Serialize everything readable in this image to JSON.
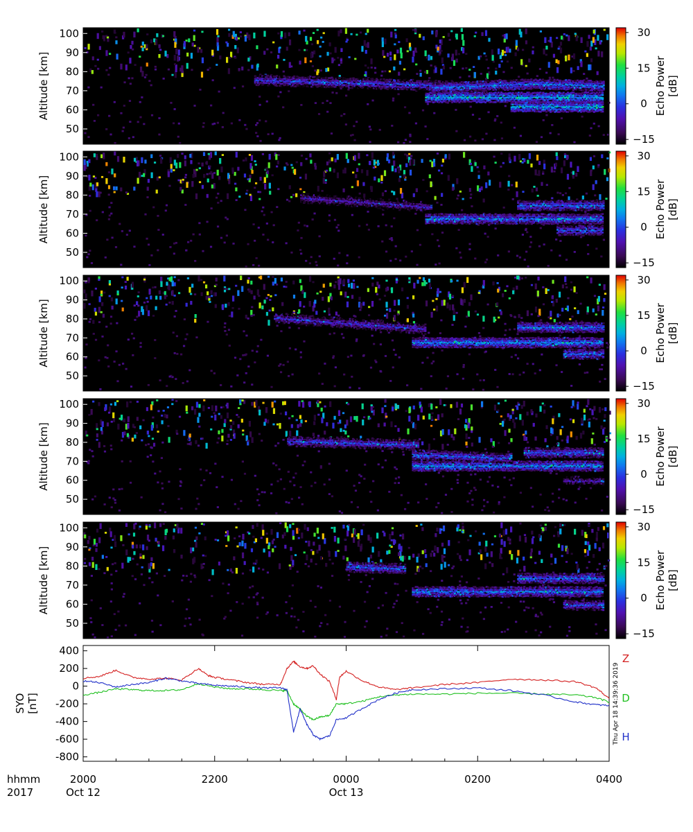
{
  "chart_data": [
    {
      "type": "heatmap",
      "panel": 1,
      "ylabel": "Altitude [km]",
      "yticks": [
        50,
        60,
        70,
        80,
        90,
        100
      ],
      "ylim": [
        42,
        103
      ],
      "colorbar_label": "Echo Power [dB]",
      "colorbar_ticks": [
        -15,
        0,
        15,
        30
      ],
      "clim": [
        -17,
        32
      ],
      "layers": [
        {
          "start": 22.6,
          "end": 25.6,
          "alt_start": 76,
          "alt_end": 73,
          "power": 2
        },
        {
          "start": 25.2,
          "end": 27.9,
          "alt_start": 67,
          "alt_end": 67,
          "power": 8
        },
        {
          "start": 25.3,
          "end": 26.8,
          "alt_start": 72,
          "alt_end": 74,
          "power": 4
        },
        {
          "start": 26.5,
          "end": 27.9,
          "alt_start": 62,
          "alt_end": 62,
          "power": 8
        },
        {
          "start": 26.8,
          "end": 27.9,
          "alt_start": 74,
          "alt_end": 73,
          "power": 5
        }
      ]
    },
    {
      "type": "heatmap",
      "panel": 2,
      "ylabel": "Altitude [km]",
      "yticks": [
        50,
        60,
        70,
        80,
        90,
        100
      ],
      "ylim": [
        42,
        103
      ],
      "colorbar_label": "Echo Power [dB]",
      "colorbar_ticks": [
        -15,
        0,
        15,
        30
      ],
      "clim": [
        -17,
        32
      ],
      "layers": [
        {
          "start": 23.3,
          "end": 25.3,
          "alt_start": 79,
          "alt_end": 74,
          "power": -2
        },
        {
          "start": 25.2,
          "end": 27.9,
          "alt_start": 68,
          "alt_end": 68,
          "power": 5
        },
        {
          "start": 26.6,
          "end": 27.9,
          "alt_start": 75,
          "alt_end": 75,
          "power": 4
        },
        {
          "start": 27.2,
          "end": 27.9,
          "alt_start": 62,
          "alt_end": 62,
          "power": 3
        }
      ]
    },
    {
      "type": "heatmap",
      "panel": 3,
      "ylabel": "Altitude [km]",
      "yticks": [
        50,
        60,
        70,
        80,
        90,
        100
      ],
      "ylim": [
        42,
        103
      ],
      "colorbar_label": "Echo Power [dB]",
      "colorbar_ticks": [
        -15,
        0,
        15,
        30
      ],
      "clim": [
        -17,
        32
      ],
      "layers": [
        {
          "start": 22.9,
          "end": 25.2,
          "alt_start": 81,
          "alt_end": 75,
          "power": 0
        },
        {
          "start": 25.0,
          "end": 27.9,
          "alt_start": 68,
          "alt_end": 68,
          "power": 6
        },
        {
          "start": 26.6,
          "end": 27.9,
          "alt_start": 76,
          "alt_end": 76,
          "power": 5
        },
        {
          "start": 27.3,
          "end": 27.9,
          "alt_start": 62,
          "alt_end": 62,
          "power": 4
        }
      ]
    },
    {
      "type": "heatmap",
      "panel": 4,
      "ylabel": "Altitude [km]",
      "yticks": [
        50,
        60,
        70,
        80,
        90,
        100
      ],
      "ylim": [
        42,
        103
      ],
      "colorbar_label": "Echo Power [dB]",
      "colorbar_ticks": [
        -15,
        0,
        15,
        30
      ],
      "clim": [
        -17,
        32
      ],
      "layers": [
        {
          "start": 23.1,
          "end": 25.1,
          "alt_start": 81,
          "alt_end": 79,
          "power": 2
        },
        {
          "start": 25.0,
          "end": 27.9,
          "alt_start": 68,
          "alt_end": 68,
          "power": 6
        },
        {
          "start": 25.0,
          "end": 26.5,
          "alt_start": 74,
          "alt_end": 72,
          "power": 3
        },
        {
          "start": 26.7,
          "end": 27.9,
          "alt_start": 75,
          "alt_end": 75,
          "power": 3
        },
        {
          "start": 27.3,
          "end": 27.9,
          "alt_start": 60,
          "alt_end": 60,
          "power": -3
        }
      ]
    },
    {
      "type": "heatmap",
      "panel": 5,
      "ylabel": "Altitude [km]",
      "yticks": [
        50,
        60,
        70,
        80,
        90,
        100
      ],
      "ylim": [
        42,
        103
      ],
      "colorbar_label": "Echo Power [dB]",
      "colorbar_ticks": [
        -15,
        0,
        15,
        30
      ],
      "clim": [
        -17,
        32
      ],
      "layers": [
        {
          "start": 24.0,
          "end": 24.9,
          "alt_start": 80,
          "alt_end": 79,
          "power": 3
        },
        {
          "start": 25.0,
          "end": 27.9,
          "alt_start": 67,
          "alt_end": 67,
          "power": 5
        },
        {
          "start": 26.6,
          "end": 27.9,
          "alt_start": 74,
          "alt_end": 74,
          "power": 4
        },
        {
          "start": 27.3,
          "end": 27.9,
          "alt_start": 60,
          "alt_end": 60,
          "power": 2
        }
      ]
    },
    {
      "type": "line",
      "panel": 6,
      "ylabel": "SYO [nT]",
      "yticks": [
        400,
        200,
        0,
        -200,
        -400,
        -600,
        -800
      ],
      "ylim": [
        -850,
        460
      ],
      "series": [
        {
          "name": "Z",
          "color": "#d42020",
          "x": [
            20.0,
            20.25,
            20.5,
            20.75,
            21.0,
            21.25,
            21.5,
            21.75,
            21.9,
            22.0,
            22.25,
            22.5,
            22.75,
            23.0,
            23.1,
            23.2,
            23.3,
            23.4,
            23.5,
            23.6,
            23.75,
            23.85,
            23.9,
            24.0,
            24.25,
            24.5,
            24.75,
            25.0,
            25.5,
            26.0,
            26.5,
            27.0,
            27.5,
            27.8,
            28.0
          ],
          "y": [
            90,
            110,
            180,
            100,
            80,
            90,
            70,
            200,
            120,
            100,
            70,
            40,
            20,
            20,
            200,
            280,
            220,
            200,
            230,
            140,
            50,
            -150,
            100,
            170,
            60,
            -10,
            -40,
            -20,
            20,
            40,
            80,
            70,
            50,
            -20,
            -140
          ]
        },
        {
          "name": "D",
          "color": "#20c020",
          "x": [
            20.0,
            20.25,
            20.5,
            20.75,
            21.0,
            21.25,
            21.5,
            21.75,
            22.0,
            22.25,
            22.5,
            22.75,
            23.0,
            23.1,
            23.2,
            23.3,
            23.4,
            23.5,
            23.6,
            23.75,
            23.85,
            24.0,
            24.25,
            24.5,
            24.75,
            25.0,
            25.5,
            26.0,
            26.5,
            27.0,
            27.5,
            27.8,
            28.0
          ],
          "y": [
            -100,
            -70,
            -30,
            -40,
            -50,
            -50,
            -40,
            30,
            -10,
            -30,
            -30,
            -40,
            -50,
            -50,
            -200,
            -260,
            -340,
            -380,
            -350,
            -330,
            -200,
            -200,
            -170,
            -120,
            -100,
            -90,
            -90,
            -80,
            -80,
            -90,
            -100,
            -130,
            -180
          ]
        },
        {
          "name": "H",
          "color": "#2030c8",
          "x": [
            20.0,
            20.25,
            20.5,
            20.75,
            21.0,
            21.25,
            21.5,
            21.75,
            22.0,
            22.25,
            22.5,
            22.75,
            23.0,
            23.1,
            23.2,
            23.3,
            23.4,
            23.5,
            23.6,
            23.75,
            23.85,
            24.0,
            24.25,
            24.5,
            24.75,
            25.0,
            25.5,
            26.0,
            26.5,
            27.0,
            27.5,
            27.8,
            28.0
          ],
          "y": [
            60,
            40,
            -10,
            20,
            40,
            90,
            60,
            30,
            10,
            0,
            -10,
            -20,
            -20,
            -40,
            -520,
            -260,
            -430,
            -550,
            -600,
            -560,
            -380,
            -360,
            -250,
            -150,
            -80,
            -40,
            -30,
            -20,
            -50,
            -100,
            -180,
            -210,
            -220
          ]
        }
      ]
    }
  ],
  "x_axis": {
    "row_labels": [
      "hhmm",
      "2017"
    ],
    "ticks": [
      {
        "time": 20.0,
        "label": "2000",
        "date": "Oct 12"
      },
      {
        "time": 22.0,
        "label": "2200",
        "date": ""
      },
      {
        "time": 24.0,
        "label": "0000",
        "date": "Oct 13"
      },
      {
        "time": 26.0,
        "label": "0200",
        "date": ""
      },
      {
        "time": 28.0,
        "label": "0400",
        "date": ""
      }
    ],
    "range": [
      20.0,
      28.0
    ]
  },
  "timestamp": "Thu Apr 18 14:39:36 2019",
  "colors": {
    "background": "#000000",
    "grid_text": "#000000"
  }
}
